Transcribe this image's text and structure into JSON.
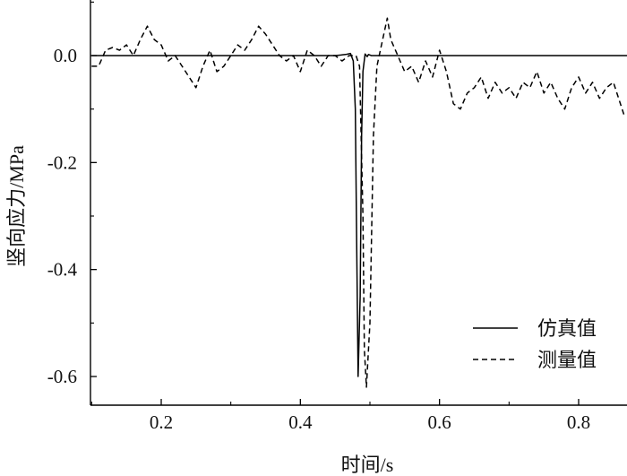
{
  "chart_data": {
    "type": "line",
    "xlabel": "时间/s",
    "ylabel": "竖向应力/MPa",
    "xlim": [
      0.1,
      0.87
    ],
    "ylim": [
      -0.65,
      0.1
    ],
    "x_ticks": [
      0.2,
      0.4,
      0.6,
      0.8
    ],
    "x_tick_labels": [
      "0.2",
      "0.4",
      "0.6",
      "0.8"
    ],
    "y_ticks": [
      0.0,
      -0.2,
      -0.4,
      -0.6
    ],
    "y_tick_labels": [
      "0.0",
      "-0.2",
      "-0.4",
      "-0.6"
    ],
    "grid": false,
    "legend_position": "bottom-right",
    "series": [
      {
        "name": "仿真值",
        "style": "solid",
        "color": "#000000",
        "x": [
          0.1,
          0.45,
          0.465,
          0.472,
          0.476,
          0.479,
          0.481,
          0.483,
          0.486,
          0.488,
          0.49,
          0.493,
          0.496,
          0.498,
          0.502,
          0.51,
          0.52,
          0.87
        ],
        "y": [
          0.0,
          0.0,
          0.002,
          0.004,
          -0.01,
          -0.1,
          -0.35,
          -0.6,
          -0.45,
          -0.15,
          -0.03,
          0.003,
          -0.002,
          0.002,
          0.0,
          0.0,
          0.0,
          0.0
        ]
      },
      {
        "name": "测量值",
        "style": "dashed",
        "color": "#000000",
        "x": [
          0.1,
          0.11,
          0.12,
          0.13,
          0.14,
          0.15,
          0.16,
          0.17,
          0.18,
          0.19,
          0.2,
          0.21,
          0.22,
          0.23,
          0.24,
          0.25,
          0.26,
          0.27,
          0.28,
          0.29,
          0.3,
          0.31,
          0.32,
          0.33,
          0.34,
          0.35,
          0.36,
          0.37,
          0.38,
          0.39,
          0.4,
          0.41,
          0.42,
          0.43,
          0.44,
          0.45,
          0.46,
          0.47,
          0.48,
          0.485,
          0.49,
          0.492,
          0.495,
          0.5,
          0.505,
          0.51,
          0.52,
          0.525,
          0.53,
          0.54,
          0.55,
          0.56,
          0.57,
          0.58,
          0.59,
          0.6,
          0.61,
          0.62,
          0.63,
          0.64,
          0.65,
          0.66,
          0.67,
          0.68,
          0.69,
          0.7,
          0.71,
          0.72,
          0.73,
          0.74,
          0.75,
          0.76,
          0.77,
          0.78,
          0.79,
          0.8,
          0.81,
          0.82,
          0.83,
          0.84,
          0.85,
          0.86,
          0.865
        ],
        "y": [
          -0.02,
          -0.02,
          0.01,
          0.015,
          0.01,
          0.02,
          0.0,
          0.03,
          0.055,
          0.03,
          0.02,
          -0.01,
          0.0,
          -0.02,
          -0.04,
          -0.06,
          -0.02,
          0.01,
          -0.03,
          -0.02,
          0.0,
          0.02,
          0.01,
          0.03,
          0.055,
          0.04,
          0.02,
          0.0,
          -0.01,
          0.0,
          -0.03,
          0.01,
          0.0,
          -0.02,
          0.0,
          0.0,
          -0.01,
          0.0,
          0.0,
          -0.02,
          -0.3,
          -0.55,
          -0.62,
          -0.5,
          -0.15,
          -0.02,
          0.04,
          0.07,
          0.03,
          0.0,
          -0.03,
          -0.02,
          -0.05,
          -0.01,
          -0.04,
          0.01,
          -0.03,
          -0.09,
          -0.1,
          -0.07,
          -0.06,
          -0.04,
          -0.08,
          -0.05,
          -0.07,
          -0.06,
          -0.08,
          -0.05,
          -0.06,
          -0.03,
          -0.07,
          -0.05,
          -0.08,
          -0.1,
          -0.06,
          -0.04,
          -0.07,
          -0.05,
          -0.08,
          -0.06,
          -0.05,
          -0.09,
          -0.11
        ]
      }
    ]
  }
}
